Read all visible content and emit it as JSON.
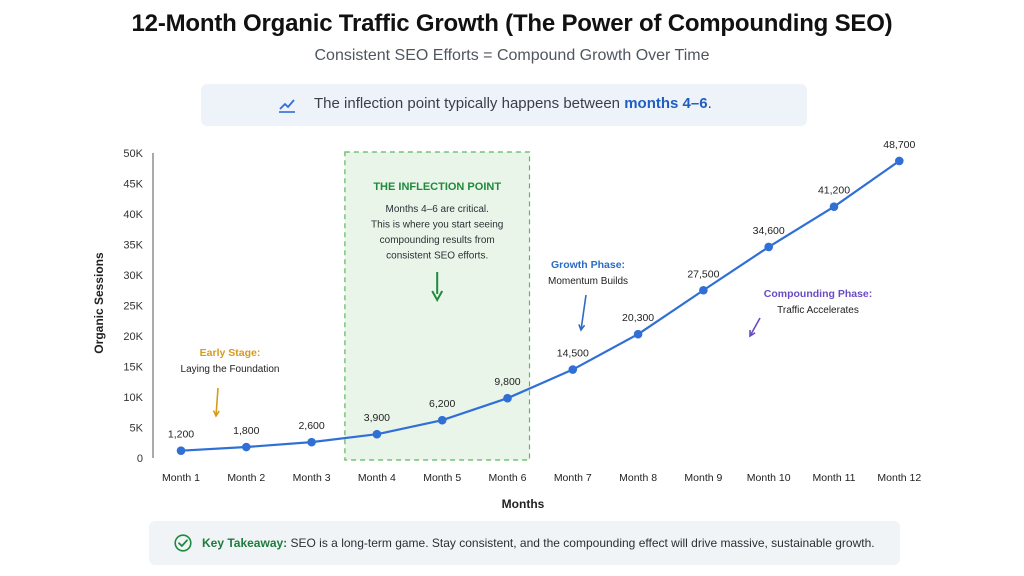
{
  "header": {
    "title": "12-Month Organic Traffic Growth (The Power of Compounding SEO)",
    "subtitle": "Consistent SEO Efforts = Compound Growth Over Time"
  },
  "callout": {
    "icon": "trend-line-icon",
    "text_before": "The inflection point typically happens between ",
    "highlight": "months 4–6",
    "text_after": "."
  },
  "chart_data": {
    "type": "line",
    "title": "",
    "xlabel": "Months",
    "ylabel": "Organic Sessions",
    "categories": [
      "Month 1",
      "Month 2",
      "Month 3",
      "Month 4",
      "Month 5",
      "Month 6",
      "Month 7",
      "Month 8",
      "Month 9",
      "Month 10",
      "Month 11",
      "Month 12"
    ],
    "values": [
      1200,
      1800,
      2600,
      3900,
      6200,
      9800,
      14500,
      20300,
      27500,
      34600,
      41200,
      48700
    ],
    "data_labels": [
      "1,200",
      "1,800",
      "2,600",
      "3,900",
      "6,200",
      "9,800",
      "14,500",
      "20,300",
      "27,500",
      "34,600",
      "41,200",
      "48,700"
    ],
    "ylim": [
      0,
      50000
    ],
    "yticks": [
      "0",
      "5K",
      "10K",
      "15K",
      "20K",
      "25K",
      "30K",
      "35K",
      "40K",
      "45K",
      "50K"
    ],
    "grid": false,
    "line_color": "#2f6fd6",
    "highlight_region": {
      "from": "Month 4",
      "to": "Month 6",
      "title": "THE INFLECTION POINT",
      "lines": [
        "Months 4–6 are critical.",
        "This is where you start seeing",
        "compounding results from",
        "consistent SEO efforts."
      ],
      "fill": "#eaf5ea",
      "border": "#5cb85c",
      "title_color": "#1e8a3c"
    },
    "annotations": [
      {
        "id": "early",
        "title": "Early Stage:",
        "text": "Laying the Foundation",
        "color": "#d99a1a"
      },
      {
        "id": "growth",
        "title": "Growth Phase:",
        "text": "Momentum Builds",
        "color": "#2b6cc4"
      },
      {
        "id": "compound",
        "title": "Compounding Phase:",
        "text": "Traffic Accelerates",
        "color": "#6a4bc4"
      }
    ]
  },
  "takeaway": {
    "icon": "check-circle-icon",
    "label": "Key Takeaway:",
    "text": " SEO is a long-term game. Stay consistent, and the compounding effect will drive massive, sustainable growth."
  }
}
